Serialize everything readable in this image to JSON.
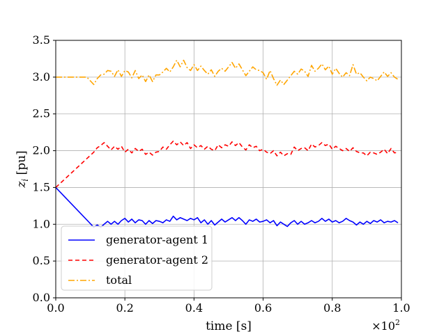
{
  "chart_data": {
    "type": "line",
    "xlabel": "time [s]",
    "ylabel": "z_i [pu]",
    "x_multiplier_label": "×10",
    "x_multiplier_exponent": "2",
    "xlim": [
      0.0,
      1.0
    ],
    "ylim": [
      0.0,
      3.5
    ],
    "x_ticks": [
      "0.0",
      "0.2",
      "0.4",
      "0.6",
      "0.8",
      "1.0"
    ],
    "y_ticks": [
      "0.0",
      "0.5",
      "1.0",
      "1.5",
      "2.0",
      "2.5",
      "3.0",
      "3.5"
    ],
    "grid": true,
    "legend_position": "lower-left",
    "series": [
      {
        "name": "generator-agent 1",
        "color": "#0000ff",
        "dash": "solid",
        "x": [
          0.0,
          0.11,
          0.12,
          0.13,
          0.14,
          0.15,
          0.16,
          0.17,
          0.18,
          0.19,
          0.2,
          0.21,
          0.22,
          0.23,
          0.24,
          0.25,
          0.26,
          0.27,
          0.28,
          0.29,
          0.3,
          0.31,
          0.32,
          0.33,
          0.34,
          0.35,
          0.36,
          0.37,
          0.38,
          0.39,
          0.4,
          0.41,
          0.42,
          0.43,
          0.44,
          0.45,
          0.46,
          0.47,
          0.48,
          0.49,
          0.5,
          0.51,
          0.52,
          0.53,
          0.54,
          0.55,
          0.56,
          0.57,
          0.58,
          0.59,
          0.6,
          0.61,
          0.62,
          0.63,
          0.64,
          0.65,
          0.66,
          0.67,
          0.68,
          0.69,
          0.7,
          0.71,
          0.72,
          0.73,
          0.74,
          0.75,
          0.76,
          0.77,
          0.78,
          0.79,
          0.8,
          0.81,
          0.82,
          0.83,
          0.84,
          0.85,
          0.86,
          0.87,
          0.88,
          0.89,
          0.9,
          0.91,
          0.92,
          0.93,
          0.94,
          0.95,
          0.96,
          0.97,
          0.98,
          0.99
        ],
        "values": [
          1.5,
          0.96,
          0.99,
          0.96,
          1.0,
          1.04,
          1.0,
          1.04,
          1.0,
          1.05,
          1.08,
          1.03,
          1.07,
          1.02,
          1.06,
          1.05,
          1.0,
          1.05,
          1.01,
          1.05,
          1.04,
          1.02,
          1.06,
          1.04,
          1.11,
          1.06,
          1.09,
          1.07,
          1.05,
          1.08,
          1.06,
          1.09,
          1.02,
          1.06,
          1.0,
          1.05,
          0.99,
          1.03,
          1.07,
          1.03,
          1.06,
          1.09,
          1.05,
          1.09,
          1.05,
          1.0,
          1.06,
          1.04,
          1.07,
          1.03,
          1.04,
          1.06,
          1.02,
          1.05,
          0.98,
          1.03,
          1.0,
          0.97,
          1.02,
          1.05,
          1.0,
          1.04,
          1.0,
          1.02,
          1.05,
          1.02,
          1.04,
          1.08,
          1.04,
          1.07,
          1.03,
          1.05,
          1.02,
          1.04,
          1.08,
          1.05,
          1.03,
          0.99,
          1.03,
          1.0,
          1.04,
          1.01,
          1.05,
          1.03,
          1.06,
          1.02,
          1.04,
          1.03,
          1.05,
          1.02
        ]
      },
      {
        "name": "generator-agent 2",
        "color": "#ff0000",
        "dash": "dashed",
        "x": [
          0.0,
          0.11,
          0.12,
          0.13,
          0.14,
          0.15,
          0.16,
          0.17,
          0.18,
          0.19,
          0.2,
          0.21,
          0.22,
          0.23,
          0.24,
          0.25,
          0.26,
          0.27,
          0.28,
          0.29,
          0.3,
          0.31,
          0.32,
          0.33,
          0.34,
          0.35,
          0.36,
          0.37,
          0.38,
          0.39,
          0.4,
          0.41,
          0.42,
          0.43,
          0.44,
          0.45,
          0.46,
          0.47,
          0.48,
          0.49,
          0.5,
          0.51,
          0.52,
          0.53,
          0.54,
          0.55,
          0.56,
          0.57,
          0.58,
          0.59,
          0.6,
          0.61,
          0.62,
          0.63,
          0.64,
          0.65,
          0.66,
          0.67,
          0.68,
          0.69,
          0.7,
          0.71,
          0.72,
          0.73,
          0.74,
          0.75,
          0.76,
          0.77,
          0.78,
          0.79,
          0.8,
          0.81,
          0.82,
          0.83,
          0.84,
          0.85,
          0.86,
          0.87,
          0.88,
          0.89,
          0.9,
          0.91,
          0.92,
          0.93,
          0.94,
          0.95,
          0.96,
          0.97,
          0.98,
          0.99
        ],
        "values": [
          1.5,
          1.98,
          2.04,
          2.07,
          2.11,
          2.06,
          2.01,
          2.06,
          2.02,
          2.06,
          1.98,
          2.02,
          1.97,
          2.03,
          1.99,
          2.02,
          1.95,
          1.98,
          1.94,
          1.98,
          1.99,
          2.05,
          2.02,
          2.08,
          2.13,
          2.08,
          2.12,
          2.07,
          2.11,
          2.03,
          2.08,
          2.04,
          2.07,
          2.02,
          2.06,
          2.02,
          2.0,
          2.08,
          2.04,
          2.08,
          2.06,
          2.12,
          2.07,
          2.11,
          2.05,
          2.01,
          2.08,
          2.04,
          2.06,
          2.0,
          2.02,
          1.98,
          1.96,
          2.0,
          1.93,
          1.98,
          1.93,
          1.96,
          1.95,
          2.05,
          2.0,
          2.03,
          2.04,
          2.0,
          2.09,
          2.05,
          2.07,
          2.11,
          2.07,
          2.09,
          2.02,
          2.06,
          2.03,
          2.0,
          2.03,
          1.99,
          2.04,
          1.99,
          1.97,
          1.97,
          1.93,
          1.98,
          1.97,
          1.95,
          1.98,
          2.02,
          1.96,
          2.03,
          1.97,
          1.98
        ]
      },
      {
        "name": "total",
        "color": "#ffa500",
        "dash": "dashdot",
        "x": [
          0.0,
          0.07,
          0.09,
          0.11,
          0.12,
          0.13,
          0.14,
          0.15,
          0.16,
          0.17,
          0.18,
          0.19,
          0.2,
          0.21,
          0.22,
          0.23,
          0.24,
          0.25,
          0.26,
          0.27,
          0.28,
          0.29,
          0.3,
          0.31,
          0.32,
          0.33,
          0.34,
          0.35,
          0.36,
          0.37,
          0.38,
          0.39,
          0.4,
          0.41,
          0.42,
          0.43,
          0.44,
          0.45,
          0.46,
          0.47,
          0.48,
          0.49,
          0.5,
          0.51,
          0.52,
          0.53,
          0.54,
          0.55,
          0.56,
          0.57,
          0.58,
          0.59,
          0.6,
          0.61,
          0.62,
          0.63,
          0.64,
          0.65,
          0.66,
          0.67,
          0.68,
          0.69,
          0.7,
          0.71,
          0.72,
          0.73,
          0.74,
          0.75,
          0.76,
          0.77,
          0.78,
          0.79,
          0.8,
          0.81,
          0.82,
          0.83,
          0.84,
          0.85,
          0.86,
          0.87,
          0.88,
          0.89,
          0.9,
          0.91,
          0.92,
          0.93,
          0.94,
          0.95,
          0.96,
          0.97,
          0.98,
          0.99
        ],
        "values": [
          3.0,
          3.0,
          3.0,
          2.9,
          2.98,
          3.03,
          3.04,
          3.09,
          3.08,
          3.01,
          3.1,
          3.01,
          3.09,
          3.07,
          2.99,
          3.09,
          2.98,
          3.03,
          2.94,
          3.03,
          2.94,
          3.03,
          3.03,
          3.07,
          3.12,
          3.07,
          3.14,
          3.23,
          3.14,
          3.23,
          3.13,
          3.09,
          3.17,
          3.09,
          3.15,
          3.09,
          3.04,
          3.1,
          3.01,
          3.08,
          3.12,
          3.08,
          3.14,
          3.2,
          3.12,
          3.18,
          3.1,
          3.02,
          3.08,
          3.14,
          3.1,
          3.09,
          3.06,
          2.97,
          3.09,
          2.98,
          2.89,
          2.96,
          2.9,
          2.96,
          3.02,
          3.08,
          3.04,
          3.11,
          3.08,
          3.01,
          3.16,
          3.08,
          3.12,
          3.18,
          3.1,
          3.15,
          3.04,
          3.12,
          3.05,
          3.0,
          3.06,
          3.02,
          3.17,
          3.04,
          3.06,
          3.0,
          2.95,
          3.0,
          2.98,
          2.95,
          3.01,
          3.07,
          3.01,
          3.06,
          3.0,
          2.97
        ]
      }
    ]
  }
}
